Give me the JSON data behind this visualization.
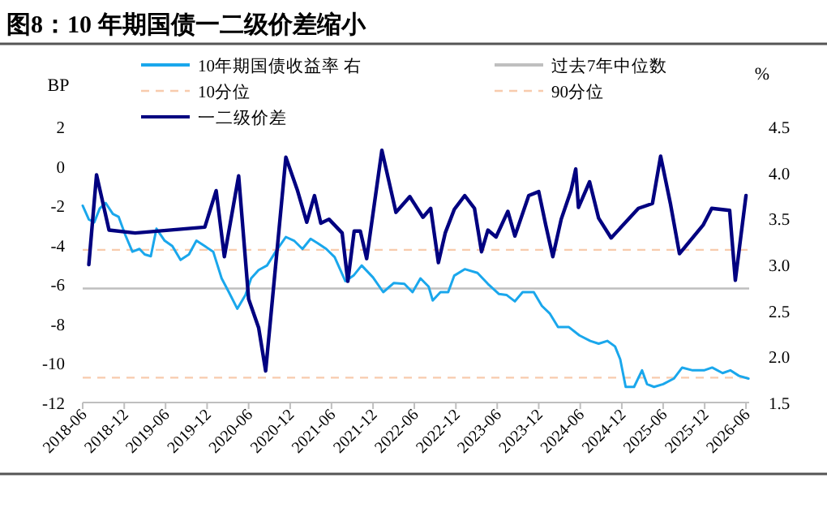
{
  "chart_data": {
    "type": "line",
    "title": "图8：10 年期国债一二级价差缩小",
    "ylabel": "BP",
    "y2label": "%",
    "xlim": [
      "2018-06-01",
      "2026-06-15"
    ],
    "xticks": [
      {
        "value": "2018-06-01",
        "label": "2018-06"
      },
      {
        "value": "2018-12-01",
        "label": "2018-12"
      },
      {
        "value": "2019-06-01",
        "label": "2019-06"
      },
      {
        "value": "2019-12-01",
        "label": "2019-12"
      },
      {
        "value": "2020-06-01",
        "label": "2020-06"
      },
      {
        "value": "2020-12-01",
        "label": "2020-12"
      },
      {
        "value": "2021-06-01",
        "label": "2021-06"
      },
      {
        "value": "2021-12-01",
        "label": "2021-12"
      },
      {
        "value": "2022-06-01",
        "label": "2022-06"
      },
      {
        "value": "2022-12-01",
        "label": "2022-12"
      },
      {
        "value": "2023-06-01",
        "label": "2023-06"
      },
      {
        "value": "2023-12-01",
        "label": "2023-12"
      },
      {
        "value": "2024-06-01",
        "label": "2024-06"
      },
      {
        "value": "2024-12-01",
        "label": "2024-12"
      },
      {
        "value": "2025-06-01",
        "label": "2025-06"
      },
      {
        "value": "2025-12-01",
        "label": "2025-12"
      },
      {
        "value": "2026-06-01",
        "label": "2026-06"
      }
    ],
    "ylim": [
      -12,
      2
    ],
    "yticks": [
      -12,
      -10,
      -8,
      -6,
      -4,
      -2,
      0,
      2
    ],
    "y2lim": [
      1.5,
      4.5
    ],
    "y2ticks": [
      {
        "value": 1.5,
        "label": "1.5"
      },
      {
        "value": 2,
        "label": "2.0"
      },
      {
        "value": 2.5,
        "label": "2.5"
      },
      {
        "value": 3,
        "label": "3.0"
      },
      {
        "value": 3.5,
        "label": "3.5"
      },
      {
        "value": 4,
        "label": "4.0"
      },
      {
        "value": 4.5,
        "label": "4.5"
      }
    ],
    "legend": "top",
    "grid": false,
    "ref_lines": [
      {
        "axis": "y2",
        "value": 2.74,
        "label": "过去7年中位数",
        "color": "#bfbfbf",
        "line_style": "solid"
      },
      {
        "axis": "y2",
        "value": 1.77,
        "label": "10分位",
        "color": "#f8cbad",
        "line_style": "dashed"
      },
      {
        "axis": "y2",
        "value": 3.16,
        "label": "90分位",
        "color": "#f8cbad",
        "line_style": "dashed"
      }
    ],
    "series": [
      {
        "name": "10年期国债收益率 右",
        "color": "#1aa7ec",
        "axis": "y2",
        "x": [
          "2018-06-01",
          "2018-06-28",
          "2018-07-22",
          "2018-08-15",
          "2018-09-10",
          "2018-10-12",
          "2018-11-06",
          "2018-12-06",
          "2019-01-06",
          "2019-02-06",
          "2019-03-01",
          "2019-03-28",
          "2019-04-22",
          "2019-05-28",
          "2019-07-01",
          "2019-08-06",
          "2019-09-12",
          "2019-10-15",
          "2019-11-21",
          "2019-12-28",
          "2020-02-03",
          "2020-03-06",
          "2020-04-12",
          "2020-05-18",
          "2020-06-12",
          "2020-07-15",
          "2020-08-21",
          "2020-09-28",
          "2020-11-12",
          "2020-12-18",
          "2021-01-24",
          "2021-03-01",
          "2021-04-03",
          "2021-05-09",
          "2021-06-15",
          "2021-08-01",
          "2021-09-06",
          "2021-10-12",
          "2021-12-01",
          "2022-01-15",
          "2022-03-03",
          "2022-04-18",
          "2022-05-24",
          "2022-06-28",
          "2022-08-03",
          "2022-08-21",
          "2022-09-24",
          "2022-10-28",
          "2022-11-24",
          "2023-01-09",
          "2023-03-06",
          "2023-04-21",
          "2023-06-09",
          "2023-07-12",
          "2023-08-18",
          "2023-09-21",
          "2023-11-09",
          "2023-12-15",
          "2024-01-18",
          "2024-02-24",
          "2024-04-12",
          "2024-05-28",
          "2024-07-15",
          "2024-08-21",
          "2024-09-28",
          "2024-11-01",
          "2024-11-24",
          "2024-12-18",
          "2025-01-24",
          "2025-02-28",
          "2025-03-22",
          "2025-04-22",
          "2025-06-01",
          "2025-07-18",
          "2025-08-24",
          "2025-10-09",
          "2025-11-28",
          "2026-01-03",
          "2026-02-18",
          "2026-03-24",
          "2026-05-01",
          "2026-06-12"
        ],
        "values": [
          3.64,
          3.49,
          3.46,
          3.61,
          3.67,
          3.55,
          3.52,
          3.32,
          3.14,
          3.17,
          3.11,
          3.09,
          3.39,
          3.26,
          3.2,
          3.05,
          3.11,
          3.26,
          3.2,
          3.14,
          2.85,
          2.7,
          2.52,
          2.67,
          2.85,
          2.94,
          2.99,
          3.14,
          3.3,
          3.26,
          3.17,
          3.28,
          3.23,
          3.17,
          3.08,
          2.82,
          2.88,
          2.99,
          2.86,
          2.7,
          2.8,
          2.79,
          2.7,
          2.85,
          2.76,
          2.61,
          2.7,
          2.7,
          2.88,
          2.95,
          2.91,
          2.79,
          2.68,
          2.67,
          2.6,
          2.7,
          2.7,
          2.55,
          2.47,
          2.32,
          2.32,
          2.23,
          2.17,
          2.14,
          2.17,
          2.11,
          1.97,
          1.67,
          1.67,
          1.85,
          1.7,
          1.67,
          1.7,
          1.76,
          1.88,
          1.85,
          1.85,
          1.88,
          1.82,
          1.85,
          1.79,
          1.76
        ]
      },
      {
        "name": "一二级价差",
        "color": "#000080",
        "x": [
          "2018-06-28",
          "2018-08-01",
          "2018-09-25",
          "2019-01-18",
          "2019-11-21",
          "2020-01-10",
          "2020-02-15",
          "2020-04-18",
          "2020-06-01",
          "2020-07-15",
          "2020-08-15",
          "2020-11-12",
          "2021-01-01",
          "2021-02-12",
          "2021-03-18",
          "2021-04-15",
          "2021-05-21",
          "2021-07-18",
          "2021-08-12",
          "2021-09-09",
          "2021-10-06",
          "2021-11-03",
          "2022-01-09",
          "2022-03-12",
          "2022-05-12",
          "2022-07-09",
          "2022-08-12",
          "2022-09-15",
          "2022-10-15",
          "2022-11-24",
          "2023-01-09",
          "2023-02-21",
          "2023-03-24",
          "2023-04-21",
          "2023-05-27",
          "2023-07-18",
          "2023-08-18",
          "2023-10-18",
          "2023-12-01",
          "2024-01-01",
          "2024-02-01",
          "2024-03-09",
          "2024-04-21",
          "2024-05-12",
          "2024-05-24",
          "2024-07-12",
          "2024-08-21",
          "2024-10-15",
          "2025-02-12",
          "2025-04-15",
          "2025-05-21",
          "2025-07-03",
          "2025-08-12",
          "2025-11-24",
          "2026-01-01",
          "2026-03-21",
          "2026-04-15",
          "2026-06-01"
        ],
        "values": [
          -5.0,
          -0.45,
          -3.25,
          -3.4,
          -3.1,
          -1.25,
          -4.6,
          -0.5,
          -6.75,
          -8.2,
          -10.4,
          0.45,
          -1.2,
          -2.85,
          -1.5,
          -2.9,
          -2.7,
          -3.4,
          -5.85,
          -3.3,
          -3.3,
          -4.7,
          0.8,
          -2.35,
          -1.55,
          -2.6,
          -2.15,
          -4.9,
          -3.4,
          -2.2,
          -1.5,
          -2.15,
          -4.35,
          -3.25,
          -3.6,
          -2.3,
          -3.55,
          -1.5,
          -1.3,
          -3.0,
          -4.6,
          -2.7,
          -1.25,
          -0.15,
          -2.1,
          -0.8,
          -2.65,
          -3.65,
          -2.15,
          -1.9,
          0.5,
          -1.9,
          -4.45,
          -3.0,
          -2.15,
          -2.25,
          -5.8,
          -1.5
        ]
      }
    ]
  }
}
